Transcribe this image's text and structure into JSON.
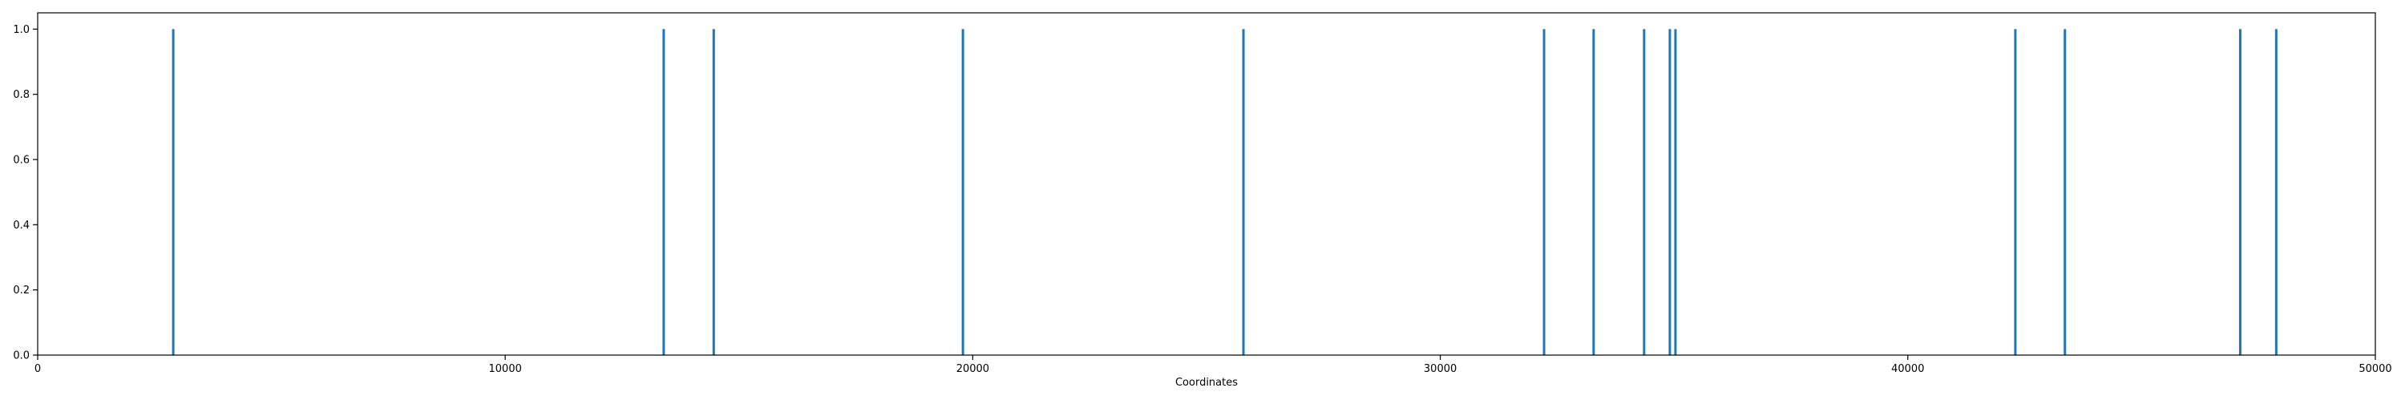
{
  "chart_data": {
    "type": "bar",
    "title": "",
    "xlabel": "Coordinates",
    "ylabel": "",
    "xlim": [
      0,
      50000
    ],
    "ylim": [
      0,
      1.05
    ],
    "grid": false,
    "x_ticks": [
      0,
      10000,
      20000,
      30000,
      40000,
      50000
    ],
    "x_tick_labels": [
      "0",
      "10000",
      "20000",
      "30000",
      "40000",
      "50000"
    ],
    "y_ticks": [
      0.0,
      0.2,
      0.4,
      0.6,
      0.8,
      1.0
    ],
    "y_tick_labels": [
      "0.0",
      "0.2",
      "0.4",
      "0.6",
      "0.8",
      "1.0"
    ],
    "bar_color": "#1f77b4",
    "series": [
      {
        "x": [
          2900,
          13390,
          14460,
          19790,
          25790,
          32220,
          33280,
          34360,
          34910,
          35030,
          42300,
          43360,
          47110,
          47880
        ],
        "values": [
          1,
          1,
          1,
          1,
          1,
          1,
          1,
          1,
          1,
          1,
          1,
          1,
          1,
          1
        ]
      }
    ]
  }
}
